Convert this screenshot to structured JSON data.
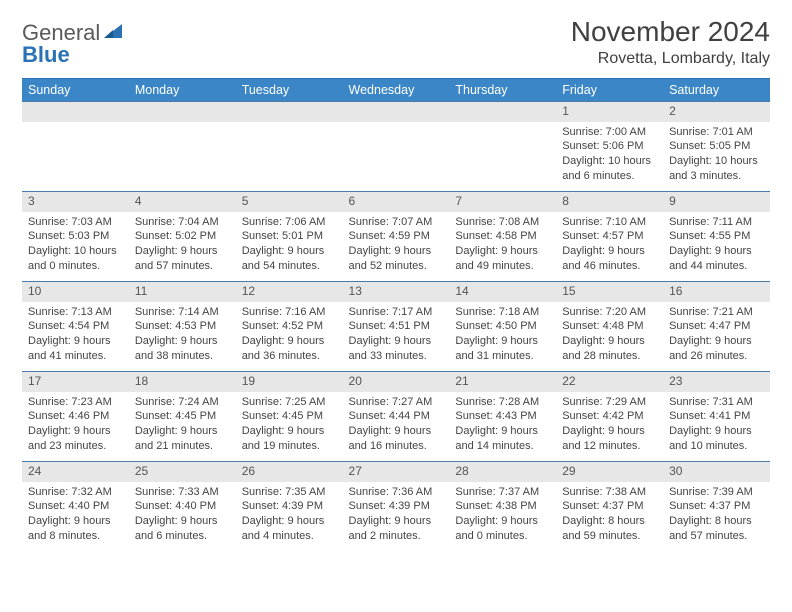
{
  "logo": {
    "word1": "General",
    "word2": "Blue"
  },
  "title": "November 2024",
  "location": "Rovetta, Lombardy, Italy",
  "colors": {
    "header_bg": "#3b86c7",
    "header_fg": "#ffffff",
    "daynum_bg": "#e7e7e7",
    "rule": "#4a7aa8",
    "accent": "#2a72b5"
  },
  "dow": [
    "Sunday",
    "Monday",
    "Tuesday",
    "Wednesday",
    "Thursday",
    "Friday",
    "Saturday"
  ],
  "weeks": [
    [
      {
        "n": "",
        "sr": "",
        "ss": "",
        "dl": ""
      },
      {
        "n": "",
        "sr": "",
        "ss": "",
        "dl": ""
      },
      {
        "n": "",
        "sr": "",
        "ss": "",
        "dl": ""
      },
      {
        "n": "",
        "sr": "",
        "ss": "",
        "dl": ""
      },
      {
        "n": "",
        "sr": "",
        "ss": "",
        "dl": ""
      },
      {
        "n": "1",
        "sr": "Sunrise: 7:00 AM",
        "ss": "Sunset: 5:06 PM",
        "dl": "Daylight: 10 hours and 6 minutes."
      },
      {
        "n": "2",
        "sr": "Sunrise: 7:01 AM",
        "ss": "Sunset: 5:05 PM",
        "dl": "Daylight: 10 hours and 3 minutes."
      }
    ],
    [
      {
        "n": "3",
        "sr": "Sunrise: 7:03 AM",
        "ss": "Sunset: 5:03 PM",
        "dl": "Daylight: 10 hours and 0 minutes."
      },
      {
        "n": "4",
        "sr": "Sunrise: 7:04 AM",
        "ss": "Sunset: 5:02 PM",
        "dl": "Daylight: 9 hours and 57 minutes."
      },
      {
        "n": "5",
        "sr": "Sunrise: 7:06 AM",
        "ss": "Sunset: 5:01 PM",
        "dl": "Daylight: 9 hours and 54 minutes."
      },
      {
        "n": "6",
        "sr": "Sunrise: 7:07 AM",
        "ss": "Sunset: 4:59 PM",
        "dl": "Daylight: 9 hours and 52 minutes."
      },
      {
        "n": "7",
        "sr": "Sunrise: 7:08 AM",
        "ss": "Sunset: 4:58 PM",
        "dl": "Daylight: 9 hours and 49 minutes."
      },
      {
        "n": "8",
        "sr": "Sunrise: 7:10 AM",
        "ss": "Sunset: 4:57 PM",
        "dl": "Daylight: 9 hours and 46 minutes."
      },
      {
        "n": "9",
        "sr": "Sunrise: 7:11 AM",
        "ss": "Sunset: 4:55 PM",
        "dl": "Daylight: 9 hours and 44 minutes."
      }
    ],
    [
      {
        "n": "10",
        "sr": "Sunrise: 7:13 AM",
        "ss": "Sunset: 4:54 PM",
        "dl": "Daylight: 9 hours and 41 minutes."
      },
      {
        "n": "11",
        "sr": "Sunrise: 7:14 AM",
        "ss": "Sunset: 4:53 PM",
        "dl": "Daylight: 9 hours and 38 minutes."
      },
      {
        "n": "12",
        "sr": "Sunrise: 7:16 AM",
        "ss": "Sunset: 4:52 PM",
        "dl": "Daylight: 9 hours and 36 minutes."
      },
      {
        "n": "13",
        "sr": "Sunrise: 7:17 AM",
        "ss": "Sunset: 4:51 PM",
        "dl": "Daylight: 9 hours and 33 minutes."
      },
      {
        "n": "14",
        "sr": "Sunrise: 7:18 AM",
        "ss": "Sunset: 4:50 PM",
        "dl": "Daylight: 9 hours and 31 minutes."
      },
      {
        "n": "15",
        "sr": "Sunrise: 7:20 AM",
        "ss": "Sunset: 4:48 PM",
        "dl": "Daylight: 9 hours and 28 minutes."
      },
      {
        "n": "16",
        "sr": "Sunrise: 7:21 AM",
        "ss": "Sunset: 4:47 PM",
        "dl": "Daylight: 9 hours and 26 minutes."
      }
    ],
    [
      {
        "n": "17",
        "sr": "Sunrise: 7:23 AM",
        "ss": "Sunset: 4:46 PM",
        "dl": "Daylight: 9 hours and 23 minutes."
      },
      {
        "n": "18",
        "sr": "Sunrise: 7:24 AM",
        "ss": "Sunset: 4:45 PM",
        "dl": "Daylight: 9 hours and 21 minutes."
      },
      {
        "n": "19",
        "sr": "Sunrise: 7:25 AM",
        "ss": "Sunset: 4:45 PM",
        "dl": "Daylight: 9 hours and 19 minutes."
      },
      {
        "n": "20",
        "sr": "Sunrise: 7:27 AM",
        "ss": "Sunset: 4:44 PM",
        "dl": "Daylight: 9 hours and 16 minutes."
      },
      {
        "n": "21",
        "sr": "Sunrise: 7:28 AM",
        "ss": "Sunset: 4:43 PM",
        "dl": "Daylight: 9 hours and 14 minutes."
      },
      {
        "n": "22",
        "sr": "Sunrise: 7:29 AM",
        "ss": "Sunset: 4:42 PM",
        "dl": "Daylight: 9 hours and 12 minutes."
      },
      {
        "n": "23",
        "sr": "Sunrise: 7:31 AM",
        "ss": "Sunset: 4:41 PM",
        "dl": "Daylight: 9 hours and 10 minutes."
      }
    ],
    [
      {
        "n": "24",
        "sr": "Sunrise: 7:32 AM",
        "ss": "Sunset: 4:40 PM",
        "dl": "Daylight: 9 hours and 8 minutes."
      },
      {
        "n": "25",
        "sr": "Sunrise: 7:33 AM",
        "ss": "Sunset: 4:40 PM",
        "dl": "Daylight: 9 hours and 6 minutes."
      },
      {
        "n": "26",
        "sr": "Sunrise: 7:35 AM",
        "ss": "Sunset: 4:39 PM",
        "dl": "Daylight: 9 hours and 4 minutes."
      },
      {
        "n": "27",
        "sr": "Sunrise: 7:36 AM",
        "ss": "Sunset: 4:39 PM",
        "dl": "Daylight: 9 hours and 2 minutes."
      },
      {
        "n": "28",
        "sr": "Sunrise: 7:37 AM",
        "ss": "Sunset: 4:38 PM",
        "dl": "Daylight: 9 hours and 0 minutes."
      },
      {
        "n": "29",
        "sr": "Sunrise: 7:38 AM",
        "ss": "Sunset: 4:37 PM",
        "dl": "Daylight: 8 hours and 59 minutes."
      },
      {
        "n": "30",
        "sr": "Sunrise: 7:39 AM",
        "ss": "Sunset: 4:37 PM",
        "dl": "Daylight: 8 hours and 57 minutes."
      }
    ]
  ]
}
